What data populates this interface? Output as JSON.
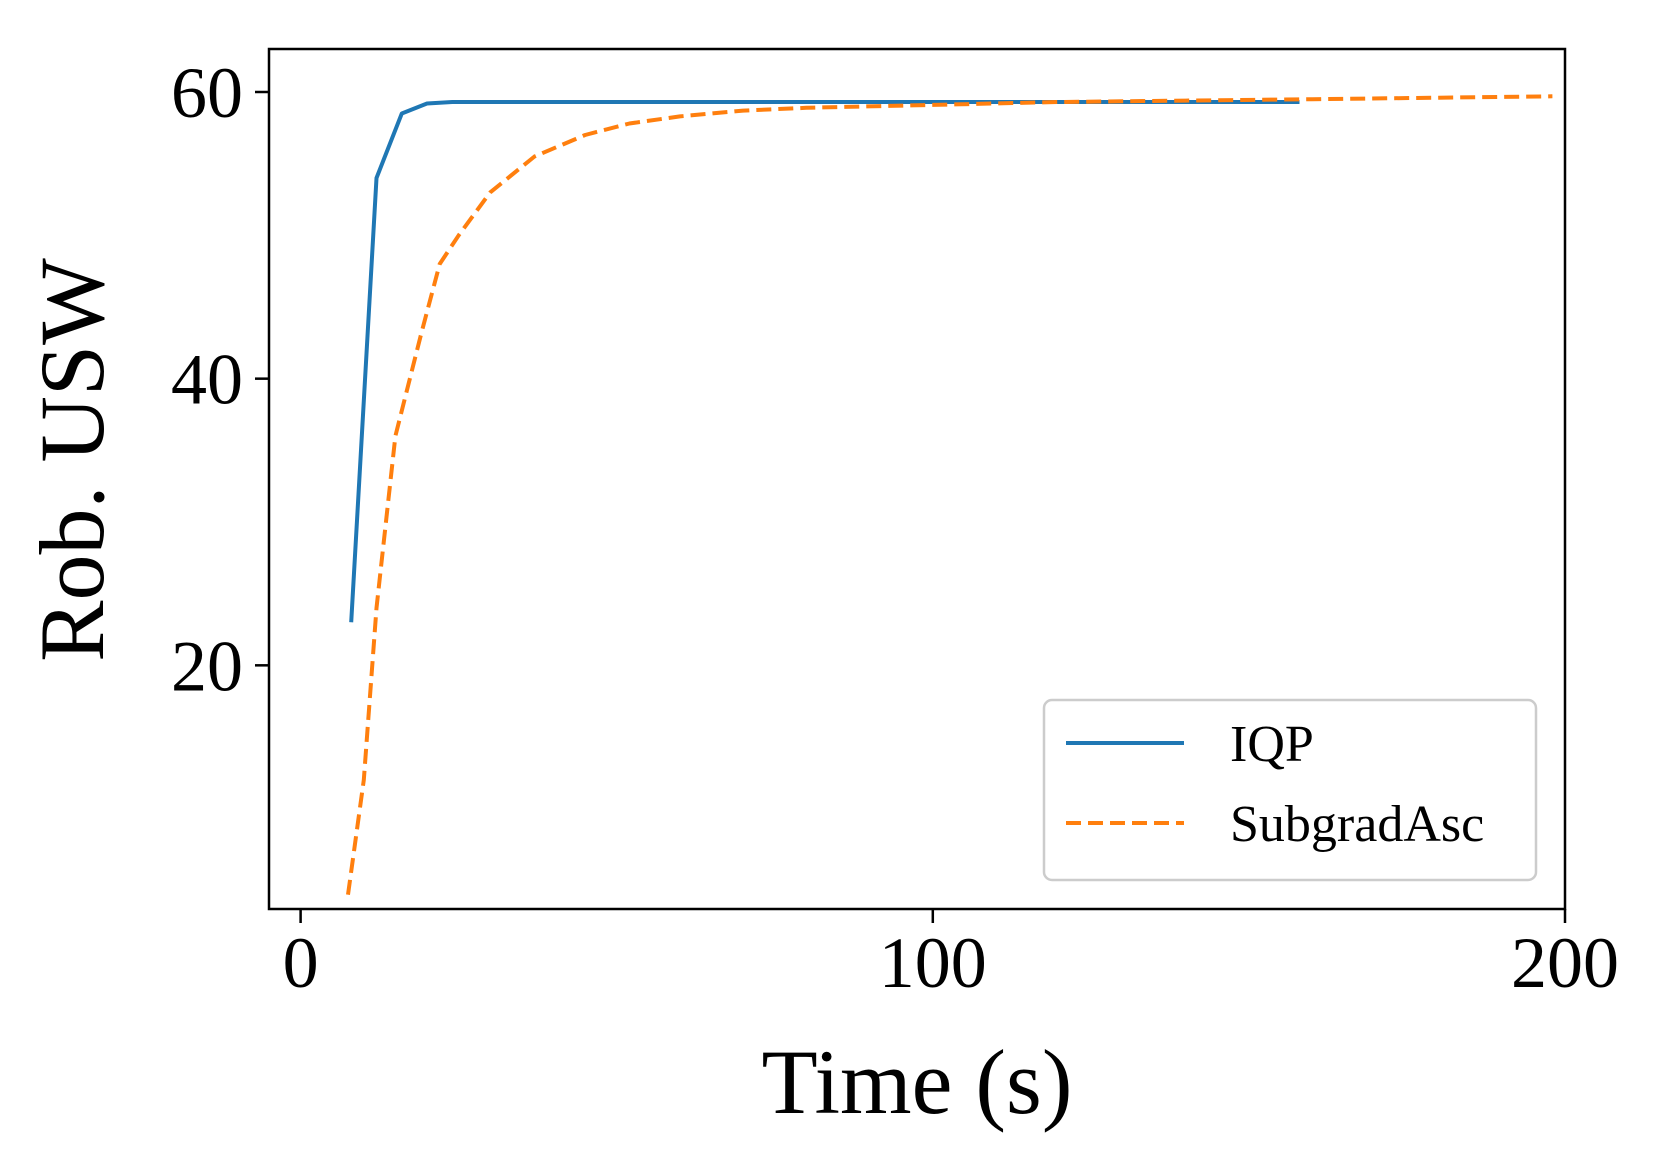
{
  "chart_data": {
    "type": "line",
    "title": "",
    "xlabel": "Time (s)",
    "ylabel": "Rob. USW",
    "xlim": [
      -5,
      200
    ],
    "ylim": [
      3,
      63
    ],
    "xticks": [
      0,
      100,
      200
    ],
    "yticks": [
      20,
      40,
      60
    ],
    "grid": false,
    "legend_position": "lower-right",
    "series": [
      {
        "name": "IQP",
        "color": "#1f77b4",
        "style": "solid",
        "x": [
          8,
          12,
          16,
          20,
          24,
          30,
          40,
          60,
          80,
          100,
          120,
          140,
          158
        ],
        "y": [
          23,
          54,
          58.5,
          59.2,
          59.3,
          59.3,
          59.3,
          59.3,
          59.3,
          59.3,
          59.3,
          59.3,
          59.3
        ]
      },
      {
        "name": "SubgradAsc",
        "color": "#ff7f0e",
        "style": "dashed",
        "x": [
          7.5,
          10,
          12,
          15,
          19,
          22,
          25,
          30,
          37,
          45,
          52,
          60,
          70,
          80,
          100,
          120,
          140,
          160,
          180,
          198
        ],
        "y": [
          4,
          12,
          24,
          36,
          43,
          48,
          50,
          53,
          55.5,
          57,
          57.8,
          58.3,
          58.7,
          58.9,
          59.1,
          59.3,
          59.4,
          59.5,
          59.6,
          59.7
        ]
      }
    ]
  }
}
